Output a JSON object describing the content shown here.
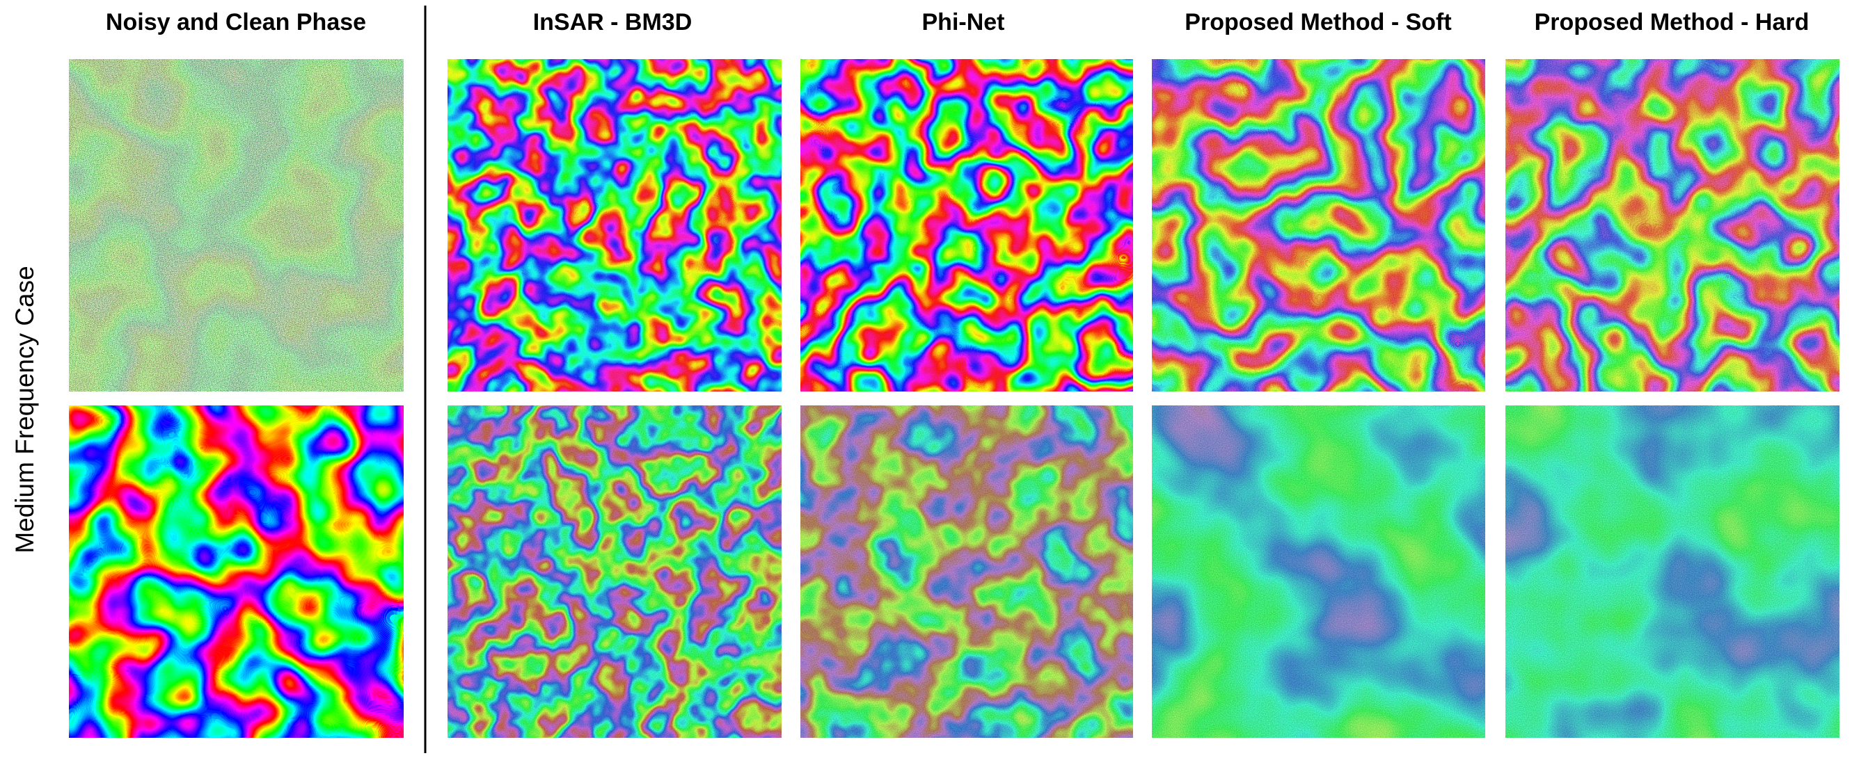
{
  "columns": [
    "Noisy and Clean Phase",
    "InSAR - BM3D",
    "Phi-Net",
    "Proposed Method - Soft",
    "Proposed Method - Hard"
  ],
  "row_label": "Medium Frequency Case"
}
